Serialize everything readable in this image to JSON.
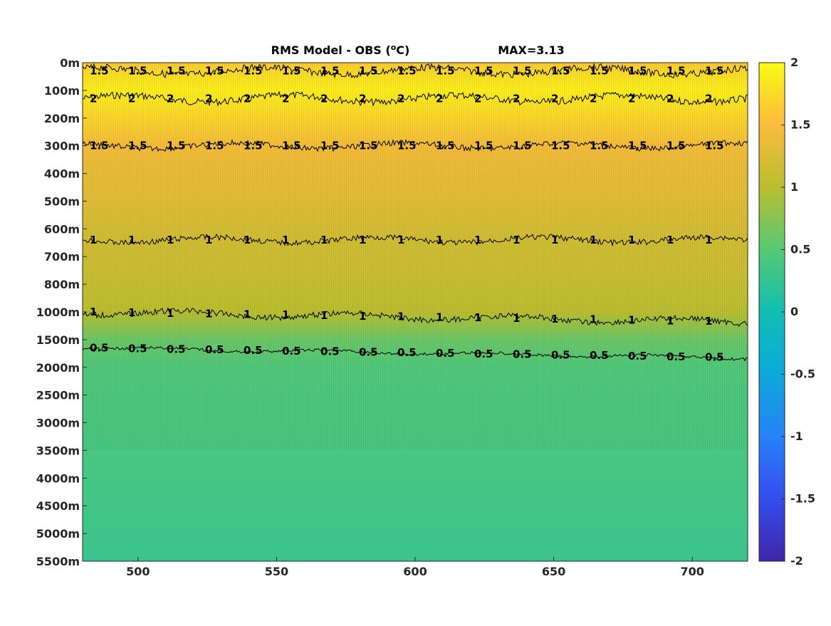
{
  "chart_data": {
    "type": "heatmap",
    "title": "RMS Model - OBS (",
    "title_unit": "o",
    "title_tail": "C)",
    "max_label": "MAX=3.13",
    "x_ticks": [
      500,
      550,
      600,
      650,
      700
    ],
    "x_range": [
      480,
      720
    ],
    "y_tick_labels": [
      "0m",
      "100m",
      "200m",
      "300m",
      "400m",
      "500m",
      "600m",
      "700m",
      "800m",
      "1000m",
      "1500m",
      "2000m",
      "2500m",
      "3000m",
      "3500m",
      "4000m",
      "4500m",
      "5000m",
      "5500m"
    ],
    "y_scale": "piecewise (depth levels evenly spaced)",
    "colorbar": {
      "ticks": [
        "2",
        "1.5",
        "1",
        "0.5",
        "0",
        "-0.5",
        "-1",
        "-1.5",
        "-2"
      ],
      "range": [
        -2,
        2
      ],
      "colormap": "parula"
    },
    "depth_profile": [
      {
        "level": 0,
        "value": 1.6
      },
      {
        "level": 0.3,
        "value": 1.75
      },
      {
        "level": 1,
        "value": 1.9
      },
      {
        "level": 1.8,
        "value": 1.75
      },
      {
        "level": 3,
        "value": 1.45
      },
      {
        "level": 4,
        "value": 1.35
      },
      {
        "level": 5,
        "value": 1.3
      },
      {
        "level": 6,
        "value": 1.2
      },
      {
        "level": 7,
        "value": 1.15
      },
      {
        "level": 8,
        "value": 1.1
      },
      {
        "level": 9,
        "value": 1.0
      },
      {
        "level": 10,
        "value": 0.6
      },
      {
        "level": 11,
        "value": 0.45
      },
      {
        "level": 14,
        "value": 0.4
      },
      {
        "level": 18,
        "value": 0.3
      }
    ],
    "contours": [
      {
        "value": 2,
        "label": "2",
        "level": 1.3
      },
      {
        "value": 1.5,
        "label": "1.5",
        "level": 0.3
      },
      {
        "value": 1.5,
        "label": "1.5",
        "level": 3.0
      },
      {
        "value": 1,
        "label": "1",
        "level": 6.4
      },
      {
        "value": 1,
        "label": "1",
        "level": 9.0
      },
      {
        "value": 0.5,
        "label": "0.5",
        "level": 10.3
      }
    ]
  }
}
